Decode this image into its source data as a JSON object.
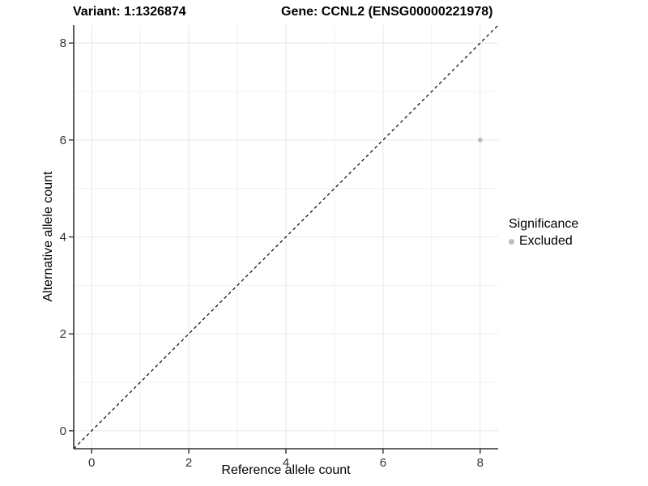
{
  "figure": {
    "title_variant": "Variant: 1:1326874",
    "title_gene": "Gene: CCNL2 (ENSG00000221978)"
  },
  "chart_data": {
    "type": "scatter",
    "title": "Variant: 1:1326874   Gene: CCNL2 (ENSG00000221978)",
    "xlabel": "Reference allele count",
    "ylabel": "Alternative allele count",
    "x_ticks": [
      0,
      2,
      4,
      6,
      8
    ],
    "y_ticks": [
      0,
      2,
      4,
      6,
      8
    ],
    "x_minor_ticks": [
      1,
      3,
      5,
      7
    ],
    "y_minor_ticks": [
      1,
      3,
      5,
      7
    ],
    "xlim": [
      -0.37,
      8.37
    ],
    "ylim": [
      -0.37,
      8.37
    ],
    "grid": true,
    "series": [
      {
        "name": "Excluded",
        "color": "#bebebe",
        "point_radius": 3,
        "points": [
          {
            "x": 8,
            "y": 6
          }
        ]
      }
    ],
    "reference_line": {
      "slope": 1,
      "intercept": 0,
      "style": "dashed",
      "color": "#000000"
    },
    "legend": {
      "title": "Significance",
      "position": "right",
      "entries": [
        {
          "label": "Excluded",
          "color": "#bebebe"
        }
      ]
    },
    "colors": {
      "grid_major": "#e7e7e7",
      "grid_minor": "#f1f1f1",
      "axis_line": "#333333",
      "tick_mark": "#333333",
      "tick_label": "#333333"
    }
  }
}
